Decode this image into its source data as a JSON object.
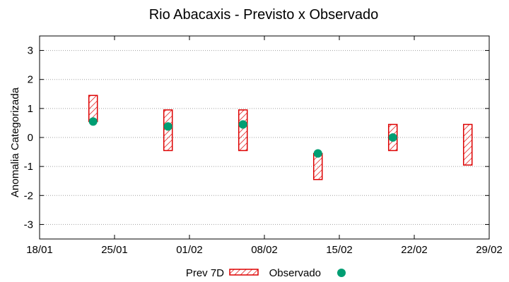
{
  "chart_data": {
    "type": "floating-bar-with-points",
    "title": "Rio Abacaxis - Previsto x Observado",
    "xlabel": "",
    "ylabel": "Anomalia Categorizada",
    "x_axis": {
      "unit": "day",
      "start_label": "18/01",
      "range_days": [
        0,
        42
      ]
    },
    "xticks": [
      {
        "day": 0,
        "label": "18/01"
      },
      {
        "day": 7,
        "label": "25/01"
      },
      {
        "day": 14,
        "label": "01/02"
      },
      {
        "day": 21,
        "label": "08/02"
      },
      {
        "day": 28,
        "label": "15/02"
      },
      {
        "day": 35,
        "label": "22/02"
      },
      {
        "day": 42,
        "label": "29/02"
      }
    ],
    "ylim": [
      -3.5,
      3.5
    ],
    "yticks": [
      -3,
      -2,
      -1,
      0,
      1,
      2,
      3
    ],
    "ytick_labels": [
      "-3",
      "-2",
      "-1",
      "0",
      "1",
      "2",
      "3"
    ],
    "grid": true,
    "series": [
      {
        "name": "Prev 7D",
        "kind": "range-bar",
        "color": "#dd0000",
        "points": [
          {
            "day": 5,
            "low": 0.55,
            "high": 1.45
          },
          {
            "day": 12,
            "low": -0.45,
            "high": 0.95
          },
          {
            "day": 19,
            "low": -0.45,
            "high": 0.95
          },
          {
            "day": 26,
            "low": -1.45,
            "high": -0.55
          },
          {
            "day": 33,
            "low": -0.45,
            "high": 0.45
          },
          {
            "day": 40,
            "low": -0.95,
            "high": 0.45
          }
        ]
      },
      {
        "name": "Observado",
        "kind": "point",
        "color": "#009e73",
        "points": [
          {
            "day": 5,
            "value": 0.55
          },
          {
            "day": 12,
            "value": 0.38
          },
          {
            "day": 19,
            "value": 0.45
          },
          {
            "day": 26,
            "value": -0.55
          },
          {
            "day": 33,
            "value": 0.0
          }
        ]
      }
    ],
    "legend": {
      "position": "bottom-center",
      "items": [
        {
          "label": "Prev 7D",
          "symbol": "hatched-bar"
        },
        {
          "label": "Observado",
          "symbol": "dot"
        }
      ]
    }
  }
}
